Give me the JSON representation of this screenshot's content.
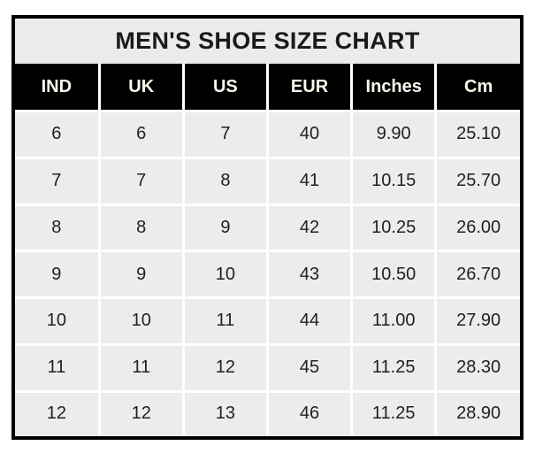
{
  "title": "MEN'S SHOE SIZE CHART",
  "colors": {
    "page_bg": "#ffffff",
    "outer_border": "#000000",
    "title_bg": "#ebebeb",
    "title_text": "#1a1a1a",
    "header_bg": "#000000",
    "header_text": "#fbf7ec",
    "cell_bg": "#ececec",
    "cell_text": "#212121",
    "gridline": "#ffffff"
  },
  "chart_data": {
    "type": "table",
    "title": "MEN'S SHOE SIZE CHART",
    "columns": [
      "IND",
      "UK",
      "US",
      "EUR",
      "Inches",
      "Cm"
    ],
    "rows": [
      [
        "6",
        "6",
        "7",
        "40",
        "9.90",
        "25.10"
      ],
      [
        "7",
        "7",
        "8",
        "41",
        "10.15",
        "25.70"
      ],
      [
        "8",
        "8",
        "9",
        "42",
        "10.25",
        "26.00"
      ],
      [
        "9",
        "9",
        "10",
        "43",
        "10.50",
        "26.70"
      ],
      [
        "10",
        "10",
        "11",
        "44",
        "11.00",
        "27.90"
      ],
      [
        "11",
        "11",
        "12",
        "45",
        "11.25",
        "28.30"
      ],
      [
        "12",
        "12",
        "13",
        "46",
        "11.25",
        "28.90"
      ]
    ]
  }
}
